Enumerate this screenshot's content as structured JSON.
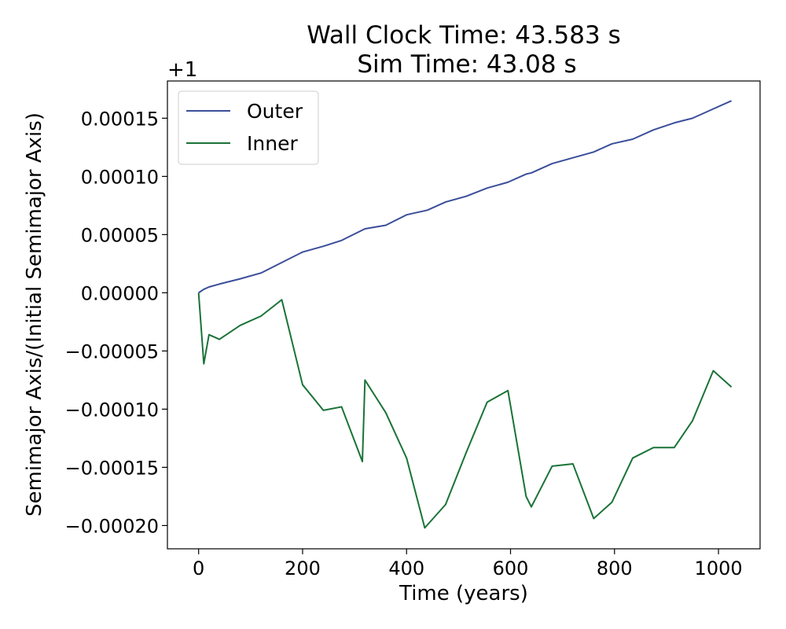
{
  "chart_data": {
    "type": "line",
    "title": "Wall Clock Time: 43.583 s",
    "subtitle": "Sim Time: 43.08 s",
    "xlabel": "Time (years)",
    "ylabel": "Semimajor Axis/(Initial Semimajor Axis)",
    "y_offset_label": "+1",
    "xlim": [
      -60,
      1080
    ],
    "ylim": [
      -0.00022,
      0.000182
    ],
    "x_ticks": [
      0,
      200,
      400,
      600,
      800,
      1000
    ],
    "x_tick_labels": [
      "0",
      "200",
      "400",
      "600",
      "800",
      "1000"
    ],
    "y_ticks": [
      -0.0002,
      -0.00015,
      -0.0001,
      -5e-05,
      0,
      5e-05,
      0.0001,
      0.00015
    ],
    "y_tick_labels": [
      "−0.00020",
      "−0.00015",
      "−0.00010",
      "−0.00005",
      "0.00000",
      "0.00005",
      "0.00010",
      "0.00015"
    ],
    "grid": false,
    "legend_position": "top-left",
    "series": [
      {
        "name": "Outer",
        "color": "#3b4e9a",
        "x": [
          0,
          10,
          20,
          40,
          80,
          120,
          160,
          200,
          240,
          275,
          320,
          360,
          400,
          440,
          475,
          515,
          555,
          595,
          630,
          640,
          680,
          720,
          760,
          795,
          835,
          875,
          915,
          950,
          990,
          1025
        ],
        "y": [
          0,
          3e-06,
          5e-06,
          7.5e-06,
          1.2e-05,
          1.7e-05,
          2.6e-05,
          3.5e-05,
          4e-05,
          4.5e-05,
          5.5e-05,
          5.8e-05,
          6.7e-05,
          7.1e-05,
          7.8e-05,
          8.3e-05,
          9e-05,
          9.5e-05,
          0.000102,
          0.000103,
          0.000111,
          0.000116,
          0.000121,
          0.000128,
          0.000132,
          0.00014,
          0.000146,
          0.00015,
          0.000158,
          0.000165
        ]
      },
      {
        "name": "Inner",
        "color": "#1a7337",
        "x": [
          0,
          10,
          20,
          40,
          80,
          120,
          160,
          200,
          240,
          275,
          315,
          320,
          360,
          400,
          435,
          475,
          515,
          555,
          595,
          630,
          640,
          680,
          720,
          760,
          795,
          835,
          875,
          915,
          950,
          990,
          1025
        ],
        "y": [
          0,
          -6.1e-05,
          -3.6e-05,
          -4e-05,
          -2.8e-05,
          -2e-05,
          -6e-06,
          -7.9e-05,
          -0.000101,
          -9.8e-05,
          -0.000145,
          -7.5e-05,
          -0.000103,
          -0.000142,
          -0.000202,
          -0.000182,
          -0.000137,
          -9.4e-05,
          -8.4e-05,
          -0.000175,
          -0.000184,
          -0.000149,
          -0.000147,
          -0.000194,
          -0.00018,
          -0.000142,
          -0.000133,
          -0.000133,
          -0.00011,
          -6.7e-05,
          -8.1e-05
        ]
      }
    ]
  }
}
